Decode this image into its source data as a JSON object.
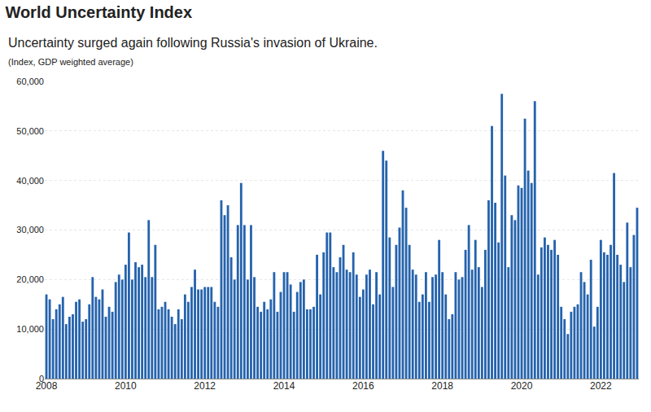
{
  "chart_data": {
    "type": "bar",
    "title": "World Uncertainty Index",
    "subtitle": "Uncertainty surged again following Russia's invasion of Ukraine.",
    "note": "(Index, GDP weighted average)",
    "categories": [
      "2008",
      null,
      null,
      null,
      null,
      null,
      null,
      null,
      null,
      null,
      null,
      null,
      null,
      null,
      null,
      null,
      null,
      null,
      null,
      null,
      null,
      null,
      null,
      null,
      "2010",
      null,
      null,
      null,
      null,
      null,
      null,
      null,
      null,
      null,
      null,
      null,
      null,
      null,
      null,
      null,
      null,
      null,
      null,
      null,
      null,
      null,
      null,
      null,
      "2012",
      null,
      null,
      null,
      null,
      null,
      null,
      null,
      null,
      null,
      null,
      null,
      null,
      null,
      null,
      null,
      null,
      null,
      null,
      null,
      null,
      null,
      null,
      null,
      "2014",
      null,
      null,
      null,
      null,
      null,
      null,
      null,
      null,
      null,
      null,
      null,
      null,
      null,
      null,
      null,
      null,
      null,
      null,
      null,
      null,
      null,
      null,
      null,
      "2016",
      null,
      null,
      null,
      null,
      null,
      null,
      null,
      null,
      null,
      null,
      null,
      null,
      null,
      null,
      null,
      null,
      null,
      null,
      null,
      null,
      null,
      null,
      null,
      "2018",
      null,
      null,
      null,
      null,
      null,
      null,
      null,
      null,
      null,
      null,
      null,
      null,
      null,
      null,
      null,
      null,
      null,
      null,
      null,
      null,
      null,
      null,
      null,
      "2020",
      null,
      null,
      null,
      null,
      null,
      null,
      null,
      null,
      null,
      null,
      null,
      null,
      null,
      null,
      null,
      null,
      null,
      null,
      null,
      null,
      null,
      null,
      null,
      "2022",
      null,
      null,
      null,
      null,
      null,
      null,
      null,
      null,
      null,
      null,
      null
    ],
    "values": [
      17000,
      16000,
      12000,
      14000,
      15000,
      16500,
      11000,
      12500,
      13000,
      15500,
      16000,
      11500,
      12000,
      15000,
      20500,
      16500,
      16000,
      18000,
      12500,
      14500,
      13500,
      19500,
      21000,
      20000,
      23000,
      29500,
      20000,
      23500,
      22500,
      23000,
      20500,
      32000,
      20500,
      27000,
      14000,
      14500,
      15500,
      14000,
      12500,
      11000,
      14000,
      12000,
      17000,
      15500,
      18500,
      22000,
      18000,
      18000,
      18500,
      18500,
      18500,
      15500,
      14500,
      36000,
      33000,
      35000,
      24500,
      20000,
      31000,
      39500,
      31000,
      20000,
      31000,
      20500,
      14500,
      13500,
      15500,
      14000,
      16000,
      21500,
      13500,
      17500,
      21500,
      21500,
      19000,
      13500,
      17500,
      19500,
      20000,
      14000,
      14000,
      14500,
      25000,
      17000,
      25500,
      29500,
      29500,
      22500,
      21500,
      24500,
      27000,
      22000,
      21500,
      25500,
      21000,
      16500,
      18000,
      21000,
      22000,
      15000,
      21500,
      17000,
      46000,
      44000,
      28500,
      18500,
      27000,
      30500,
      38000,
      34500,
      27000,
      22000,
      21000,
      15500,
      17000,
      21500,
      15500,
      20500,
      21000,
      28000,
      21500,
      17000,
      12000,
      13000,
      21500,
      20000,
      20500,
      26000,
      31000,
      22000,
      28000,
      22500,
      18500,
      26000,
      36000,
      51000,
      35500,
      27500,
      57500,
      41000,
      22500,
      33000,
      32000,
      39000,
      38500,
      52500,
      42000,
      39500,
      56000,
      21000,
      26500,
      28500,
      27000,
      26000,
      28000,
      25000,
      14500,
      12000,
      9000,
      13500,
      14500,
      15000,
      21500,
      19500,
      17000,
      24000,
      10500,
      14500,
      28000,
      25500,
      25000,
      27000,
      41500,
      25000,
      23000,
      19500,
      31500,
      22500,
      29000,
      34500
    ],
    "color": "#2563ad",
    "ylim": [
      0,
      60000
    ],
    "yticks": [
      0,
      {
        "value": 10000,
        "label": "10,000"
      },
      {
        "value": 20000,
        "label": "20,000"
      },
      {
        "value": 30000,
        "label": "30,000"
      },
      {
        "value": 40000,
        "label": "40,000"
      },
      {
        "value": 50000,
        "label": "50,000"
      },
      {
        "value": 60000,
        "label": "60,000"
      }
    ],
    "grid": true
  }
}
